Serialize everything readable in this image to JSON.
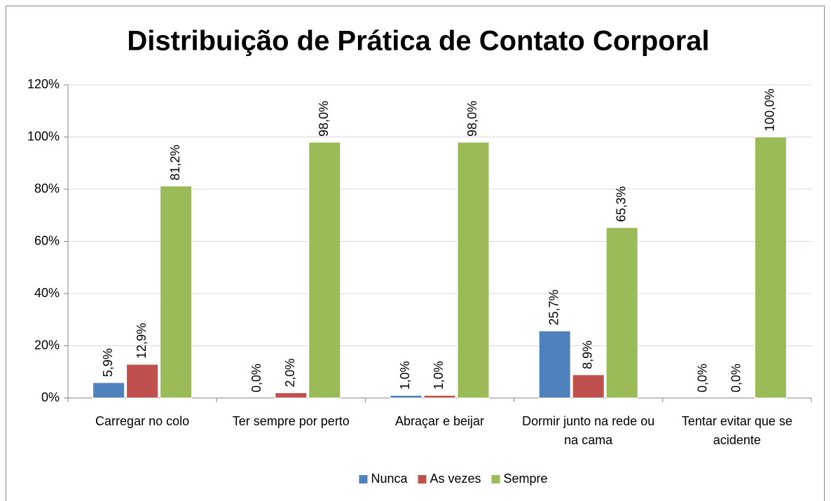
{
  "chart_data": {
    "type": "bar",
    "title": "Distribuição de Prática de Contato Corporal",
    "categories": [
      "Carregar no colo",
      "Ter sempre por perto",
      "Abraçar e beijar",
      "Dormir junto na rede ou na cama",
      "Tentar evitar que se acidente"
    ],
    "series": [
      {
        "name": "Nunca",
        "color": "#4f81bd",
        "values": [
          5.9,
          0,
          1.0,
          25.7,
          0
        ],
        "value_labels": [
          "5,9%",
          "0,0%",
          "1,0%",
          "25,7%",
          "0,0%"
        ]
      },
      {
        "name": "As vezes",
        "color": "#c0504d",
        "values": [
          12.9,
          2.0,
          1.0,
          8.9,
          0
        ],
        "value_labels": [
          "12,9%",
          "2,0%",
          "1,0%",
          "8,9%",
          "0,0%"
        ]
      },
      {
        "name": "Sempre",
        "color": "#9bbb59",
        "values": [
          81.2,
          98.0,
          98.0,
          65.3,
          100.0
        ],
        "value_labels": [
          "81,2%",
          "98,0%",
          "98,0%",
          "65,3%",
          "100,0%"
        ]
      }
    ],
    "ylim": [
      0,
      120
    ],
    "yticks": [
      {
        "value": 0,
        "label": "0%"
      },
      {
        "value": 20,
        "label": "20%"
      },
      {
        "value": 40,
        "label": "40%"
      },
      {
        "value": 60,
        "label": "60%"
      },
      {
        "value": 80,
        "label": "80%"
      },
      {
        "value": 100,
        "label": "100%"
      },
      {
        "value": 120,
        "label": "120%"
      }
    ],
    "grid": true,
    "legend": "bottom"
  }
}
